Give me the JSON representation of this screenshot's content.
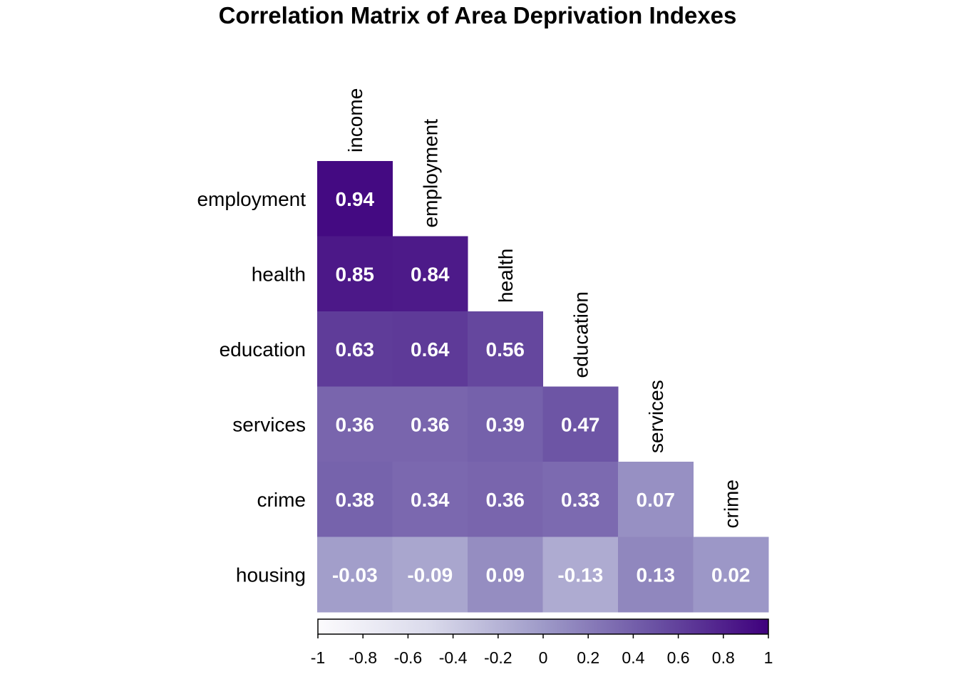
{
  "chart_data": {
    "type": "heatmap",
    "title": "Correlation Matrix of Area Deprivation Indexes",
    "variables": [
      "income",
      "employment",
      "health",
      "education",
      "services",
      "crime",
      "housing"
    ],
    "row_labels": [
      "employment",
      "health",
      "education",
      "services",
      "crime",
      "housing"
    ],
    "column_labels": [
      "income",
      "employment",
      "health",
      "education",
      "services",
      "crime"
    ],
    "matrix_lower_triangle": [
      [
        0.94
      ],
      [
        0.85,
        0.84
      ],
      [
        0.63,
        0.64,
        0.56
      ],
      [
        0.36,
        0.36,
        0.39,
        0.47
      ],
      [
        0.38,
        0.34,
        0.36,
        0.33,
        0.07
      ],
      [
        -0.03,
        -0.09,
        0.09,
        -0.13,
        0.13,
        0.02
      ]
    ],
    "color_scale": {
      "range": [
        -1,
        1
      ],
      "low_color": "#ffffff",
      "mid_color": "#9e9ac8",
      "high_color": "#3f007d",
      "ticks": [
        -1,
        -0.8,
        -0.6,
        -0.4,
        -0.2,
        0,
        0.2,
        0.4,
        0.6,
        0.8,
        1
      ],
      "tick_labels": [
        "-1",
        "-0.8",
        "-0.6",
        "-0.4",
        "-0.2",
        "0",
        "0.2",
        "0.4",
        "0.6",
        "0.8",
        "1"
      ],
      "placement": "bottom"
    },
    "value_label_color": "#ffffff",
    "grid": false
  }
}
